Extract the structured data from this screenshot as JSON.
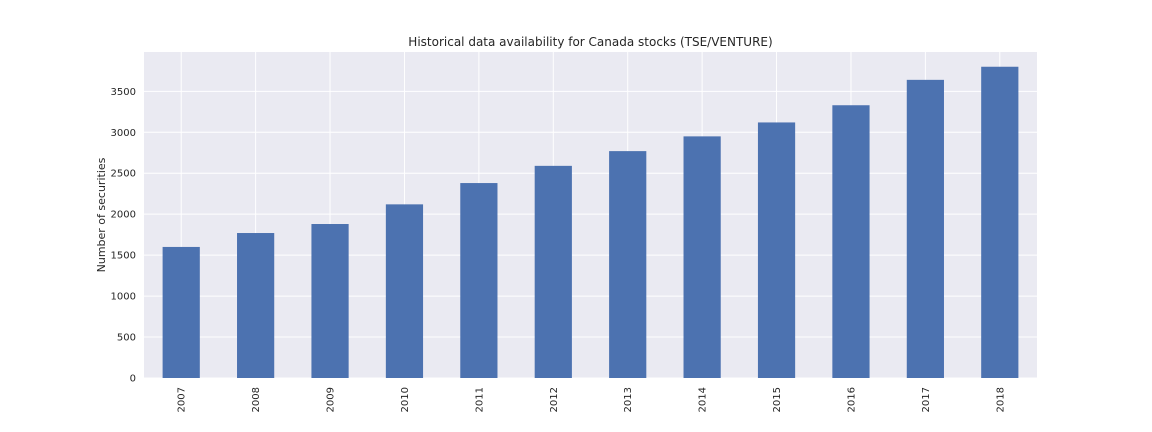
{
  "chart_data": {
    "type": "bar",
    "title": "Historical data availability for Canada stocks (TSE/VENTURE)",
    "xlabel": "",
    "ylabel": "Number of securities",
    "categories": [
      "2007",
      "2008",
      "2009",
      "2010",
      "2011",
      "2012",
      "2013",
      "2014",
      "2015",
      "2016",
      "2017",
      "2018"
    ],
    "values": [
      1600,
      1770,
      1880,
      2120,
      2380,
      2590,
      2770,
      2950,
      3120,
      3330,
      3640,
      3800
    ],
    "ylim": [
      0,
      3980
    ],
    "yticks": [
      0,
      500,
      1000,
      1500,
      2000,
      2500,
      3000,
      3500
    ],
    "grid": true,
    "legend": "none",
    "colors": {
      "bar": "#4c72b0",
      "plot_background": "#eaeaf2",
      "grid": "#ffffff"
    }
  }
}
